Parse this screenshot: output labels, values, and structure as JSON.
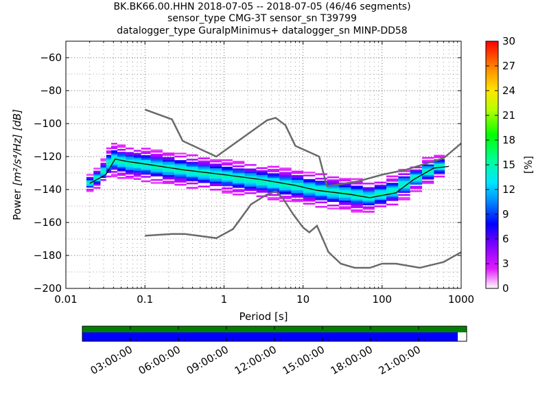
{
  "title_lines": [
    "BK.BK66.00.HHN   2018-07-05 -- 2018-07-05  (46/46 segments)",
    "sensor_type CMG-3T sensor_sn T39799",
    "datalogger_type GuralpMinimus+ datalogger_sn MINP-DD58"
  ],
  "chart_data": {
    "type": "heatmap",
    "xlabel": "Period [s]",
    "ylabel_text": "Power",
    "ylabel_units": "[m²/s⁴/Hz] [dB]",
    "x_scale": "log",
    "xlim": [
      0.01,
      1000
    ],
    "ylim": [
      -200,
      -50
    ],
    "x_ticks": [
      {
        "value": 0.01,
        "label": "0.01"
      },
      {
        "value": 0.1,
        "label": "0.1"
      },
      {
        "value": 1,
        "label": "1"
      },
      {
        "value": 10,
        "label": "10"
      },
      {
        "value": 100,
        "label": "100"
      },
      {
        "value": 1000,
        "label": "1000"
      }
    ],
    "y_ticks": [
      {
        "value": -60,
        "label": "−60"
      },
      {
        "value": -80,
        "label": "−80"
      },
      {
        "value": -100,
        "label": "−100"
      },
      {
        "value": -120,
        "label": "−120"
      },
      {
        "value": -140,
        "label": "−140"
      },
      {
        "value": -160,
        "label": "−160"
      },
      {
        "value": -180,
        "label": "−180"
      },
      {
        "value": -200,
        "label": "−200"
      }
    ],
    "grid": true,
    "colorbar": {
      "label": "[%]",
      "range": [
        0,
        30
      ],
      "ticks": [
        {
          "value": 0,
          "label": "0"
        },
        {
          "value": 3,
          "label": "3"
        },
        {
          "value": 6,
          "label": "6"
        },
        {
          "value": 9,
          "label": "9"
        },
        {
          "value": 12,
          "label": "12"
        },
        {
          "value": 15,
          "label": "15"
        },
        {
          "value": 18,
          "label": "18"
        },
        {
          "value": 21,
          "label": "21"
        },
        {
          "value": 24,
          "label": "24"
        },
        {
          "value": 27,
          "label": "27"
        },
        {
          "value": 30,
          "label": "30"
        }
      ]
    },
    "nhnm": [
      [
        0.1,
        -168
      ],
      [
        0.22,
        -167
      ],
      [
        0.32,
        -167
      ],
      [
        0.8,
        -169.5
      ],
      [
        1.3,
        -164
      ],
      [
        2.2,
        -149
      ],
      [
        3.5,
        -143
      ],
      [
        4.5,
        -141
      ],
      [
        5.5,
        -145
      ],
      [
        7.5,
        -155
      ],
      [
        10,
        -163
      ],
      [
        12,
        -166
      ],
      [
        15,
        -162
      ],
      [
        21,
        -178
      ],
      [
        30,
        -185
      ],
      [
        45,
        -187.5
      ],
      [
        70,
        -187.5
      ],
      [
        100,
        -185
      ],
      [
        150,
        -185
      ],
      [
        300,
        -187.5
      ],
      [
        600,
        -184
      ],
      [
        1000,
        -178
      ]
    ],
    "nlnm": [
      [
        0.1,
        -91.5
      ],
      [
        0.22,
        -97.4
      ],
      [
        0.3,
        -110.5
      ],
      [
        0.8,
        -120
      ],
      [
        3.5,
        -98
      ],
      [
        4.5,
        -96.5
      ],
      [
        6,
        -101
      ],
      [
        8,
        -113.5
      ],
      [
        16,
        -120
      ],
      [
        20,
        -138
      ],
      [
        50,
        -135
      ],
      [
        100,
        -131
      ],
      [
        200,
        -128
      ],
      [
        600,
        -121
      ],
      [
        1000,
        -112
      ]
    ],
    "mode_line": [
      [
        0.02,
        -136.3
      ],
      [
        0.032,
        -131
      ],
      [
        0.042,
        -121.5
      ],
      [
        0.06,
        -123
      ],
      [
        0.1,
        -124.5
      ],
      [
        0.3,
        -128
      ],
      [
        1,
        -131
      ],
      [
        3,
        -134
      ],
      [
        8,
        -137.5
      ],
      [
        15,
        -140.5
      ],
      [
        40,
        -143
      ],
      [
        70,
        -145
      ],
      [
        150,
        -142
      ],
      [
        250,
        -134
      ],
      [
        450,
        -127
      ],
      [
        700,
        -126
      ]
    ],
    "density_columns": [
      {
        "period": 0.02,
        "center": -136,
        "spread": 5
      },
      {
        "period": 0.025,
        "center": -133,
        "spread": 6
      },
      {
        "period": 0.03,
        "center": -129,
        "spread": 7
      },
      {
        "period": 0.035,
        "center": -124,
        "spread": 9
      },
      {
        "period": 0.04,
        "center": -122,
        "spread": 10
      },
      {
        "period": 0.05,
        "center": -123,
        "spread": 10
      },
      {
        "period": 0.065,
        "center": -124,
        "spread": 10
      },
      {
        "period": 0.08,
        "center": -124.5,
        "spread": 10
      },
      {
        "period": 0.1,
        "center": -125,
        "spread": 10
      },
      {
        "period": 0.14,
        "center": -126,
        "spread": 10
      },
      {
        "period": 0.2,
        "center": -127,
        "spread": 10
      },
      {
        "period": 0.28,
        "center": -128,
        "spread": 10
      },
      {
        "period": 0.4,
        "center": -129,
        "spread": 10
      },
      {
        "period": 0.55,
        "center": -130,
        "spread": 10
      },
      {
        "period": 0.8,
        "center": -131,
        "spread": 10
      },
      {
        "period": 1.1,
        "center": -132,
        "spread": 10
      },
      {
        "period": 1.5,
        "center": -133,
        "spread": 10
      },
      {
        "period": 2.2,
        "center": -134,
        "spread": 10
      },
      {
        "period": 3,
        "center": -135,
        "spread": 10
      },
      {
        "period": 4.2,
        "center": -136,
        "spread": 10
      },
      {
        "period": 6,
        "center": -137,
        "spread": 10
      },
      {
        "period": 8.5,
        "center": -138,
        "spread": 10
      },
      {
        "period": 12,
        "center": -139.5,
        "spread": 10
      },
      {
        "period": 17,
        "center": -140.5,
        "spread": 10
      },
      {
        "period": 24,
        "center": -141.5,
        "spread": 10
      },
      {
        "period": 34,
        "center": -142.5,
        "spread": 10
      },
      {
        "period": 48,
        "center": -143.5,
        "spread": 10
      },
      {
        "period": 68,
        "center": -144.5,
        "spread": 9
      },
      {
        "period": 95,
        "center": -143,
        "spread": 9
      },
      {
        "period": 135,
        "center": -141,
        "spread": 9
      },
      {
        "period": 190,
        "center": -137,
        "spread": 9
      },
      {
        "period": 270,
        "center": -133,
        "spread": 8
      },
      {
        "period": 380,
        "center": -129,
        "spread": 8
      },
      {
        "period": 540,
        "center": -126,
        "spread": 7
      }
    ]
  },
  "timeline": {
    "tick_labels": [
      "03:00:00",
      "06:00:00",
      "09:00:00",
      "12:00:00",
      "15:00:00",
      "18:00:00",
      "21:00:00"
    ],
    "coverage_fraction": 0.977
  },
  "colors": {
    "noise_model": "#696969",
    "mode_line": "#000000",
    "timeline_top": "#008000",
    "timeline_bottom": "#0000ff"
  }
}
